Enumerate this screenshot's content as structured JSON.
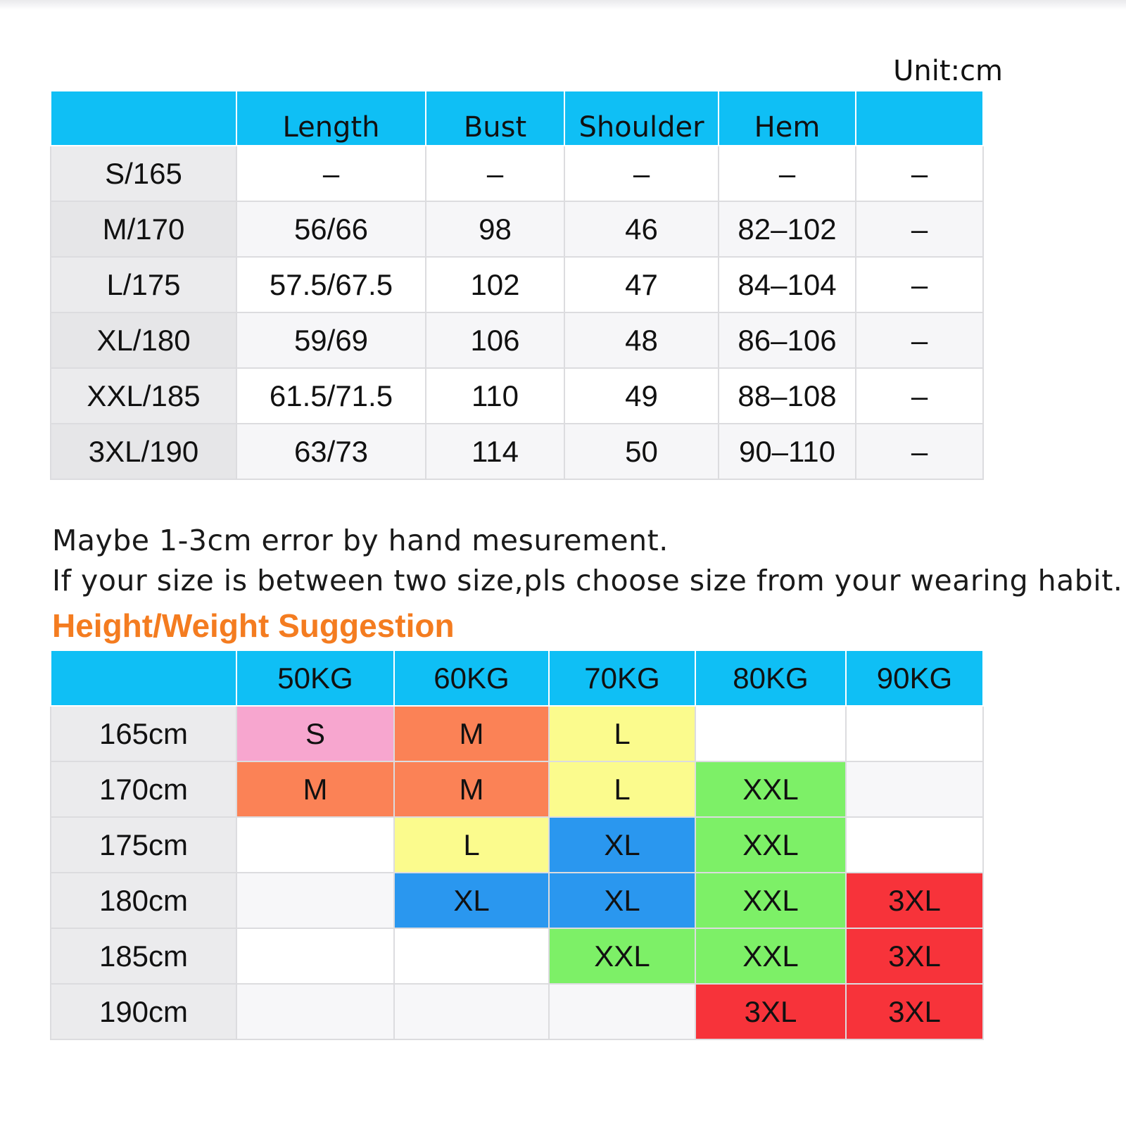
{
  "unit_label": "Unit:cm",
  "colors": {
    "header_bg": "#0fbff5",
    "S": "#f7a6cf",
    "M": "#fb8256",
    "L": "#fbfb8d",
    "XL": "#2a97ef",
    "XXL": "#7df067",
    "3XL": "#f7333a",
    "title": "#f47c20"
  },
  "size_chart": {
    "headers": [
      "",
      "Length",
      "Bust",
      "Shoulder",
      "Hem",
      ""
    ],
    "rows": [
      [
        "S/165",
        "–",
        "–",
        "–",
        "–",
        "–"
      ],
      [
        "M/170",
        "56/66",
        "98",
        "46",
        "82–102",
        "–"
      ],
      [
        "L/175",
        "57.5/67.5",
        "102",
        "47",
        "84–104",
        "–"
      ],
      [
        "XL/180",
        "59/69",
        "106",
        "48",
        "86–106",
        "–"
      ],
      [
        "XXL/185",
        "61.5/71.5",
        "110",
        "49",
        "88–108",
        "–"
      ],
      [
        "3XL/190",
        "63/73",
        "114",
        "50",
        "90–110",
        "–"
      ]
    ]
  },
  "notes": [
    "Maybe 1-3cm error by hand mesurement.",
    "If your size is between two size,pls choose size from your wearing habit."
  ],
  "suggestion": {
    "title": "Height/Weight Suggestion",
    "headers": [
      "",
      "50KG",
      "60KG",
      "70KG",
      "80KG",
      "90KG"
    ],
    "rows": [
      [
        "165cm",
        "S",
        "M",
        "L",
        "",
        ""
      ],
      [
        "170cm",
        "M",
        "M",
        "L",
        "XXL",
        ""
      ],
      [
        "175cm",
        "",
        "L",
        "XL",
        "XXL",
        ""
      ],
      [
        "180cm",
        "",
        "XL",
        "XL",
        "XXL",
        "3XL"
      ],
      [
        "185cm",
        "",
        "",
        "XXL",
        "XXL",
        "3XL"
      ],
      [
        "190cm",
        "",
        "",
        "",
        "3XL",
        "3XL"
      ]
    ]
  }
}
